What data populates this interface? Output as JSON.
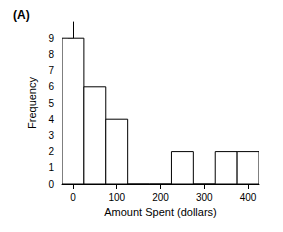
{
  "chart_data": {
    "type": "histogram",
    "title": "(A)",
    "x_label": "Amount Spent (dollars)",
    "y_label": "Frequency",
    "bins": [
      -25,
      25,
      75,
      125,
      175,
      225,
      275,
      325,
      375,
      425
    ],
    "values": [
      9,
      6,
      4,
      0,
      0,
      2,
      0,
      2,
      2
    ],
    "color": "#ffffff",
    "xlim": [
      -25,
      425
    ],
    "xticks": [
      0,
      100,
      200,
      300,
      400
    ],
    "ylim": [
      0,
      10
    ],
    "yticks": [
      0,
      1,
      2,
      3,
      4,
      5,
      6,
      7,
      8,
      9
    ],
    "grid": false
  }
}
